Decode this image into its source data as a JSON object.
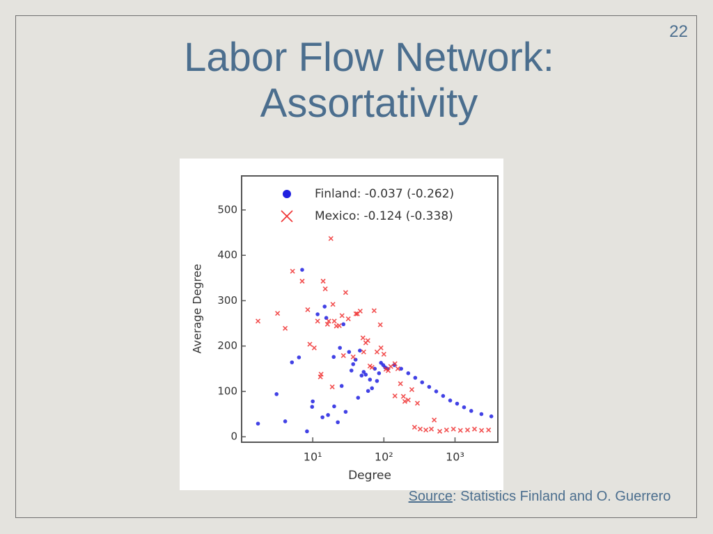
{
  "slide": {
    "page_number": "22",
    "title": [
      "Labor Flow Network:",
      "Assortativity"
    ],
    "source": {
      "label": "Source",
      "text": ": Statistics Finland and O. Guerrero"
    }
  },
  "chart_data": {
    "type": "scatter",
    "x_label": "Degree",
    "y_label": "Average Degree",
    "xscale": "log",
    "xlim": [
      1,
      4000
    ],
    "ylim": [
      -12,
      575
    ],
    "xticks": [
      {
        "value": 10,
        "label": "10¹"
      },
      {
        "value": 100,
        "label": "10²"
      },
      {
        "value": 1000,
        "label": "10³"
      }
    ],
    "yticks": [
      0,
      100,
      200,
      300,
      400,
      500
    ],
    "grid": false,
    "legend": "upper-left",
    "series": [
      {
        "name": "Finland: -0.037 (-0.262)",
        "color": "#2020e0",
        "marker": "circle",
        "x": [
          1.7,
          3.1,
          4.1,
          5.1,
          6.4,
          7.1,
          8.3,
          9.8,
          10,
          11.7,
          13.7,
          14.7,
          15.5,
          16.4,
          19.7,
          20,
          22.5,
          24.1,
          25.5,
          27,
          29,
          32.4,
          35,
          37,
          40,
          43.4,
          46,
          48.6,
          52,
          55.6,
          60,
          63.7,
          68,
          74.5,
          80,
          85.4,
          91,
          97.8,
          104,
          112,
          140,
          175,
          220,
          276,
          345,
          433,
          544,
          680,
          855,
          1070,
          1340,
          1690,
          2350,
          3240
        ],
        "y": [
          29,
          94,
          34,
          164,
          175,
          368,
          12,
          66,
          78,
          270,
          43,
          287,
          262,
          48,
          176,
          67,
          32,
          196,
          112,
          248,
          55,
          187,
          146,
          160,
          170,
          86,
          190,
          135,
          143,
          137,
          101,
          126,
          107,
          150,
          123,
          140,
          163,
          158,
          153,
          150,
          158,
          150,
          140,
          130,
          120,
          110,
          100,
          90,
          80,
          73,
          65,
          57,
          50,
          45
        ]
      },
      {
        "name": "Mexico: -0.124 (-0.338)",
        "color": "#f03030",
        "marker": "x",
        "x": [
          1.7,
          3.2,
          4.1,
          5.2,
          7.1,
          8.5,
          9.1,
          10.5,
          11.7,
          12.8,
          13.1,
          14,
          15,
          16.1,
          16.8,
          18,
          18.8,
          19.2,
          20.1,
          21.5,
          23.6,
          25.8,
          27,
          29,
          31.6,
          37,
          40.5,
          42.4,
          46.5,
          50.8,
          52,
          55.6,
          59.5,
          63.7,
          68,
          73,
          80,
          89,
          91,
          100,
          107,
          115,
          125,
          143,
          143,
          157,
          171,
          188,
          197,
          220,
          247,
          270,
          296,
          324,
          389,
          465,
          510,
          610,
          760,
          950,
          1190,
          1500,
          1880,
          2360,
          2960
        ],
        "y": [
          255,
          272,
          239,
          365,
          343,
          280,
          204,
          196,
          255,
          132,
          138,
          343,
          326,
          248,
          255,
          437,
          110,
          292,
          255,
          244,
          245,
          267,
          179,
          318,
          260,
          176,
          271,
          271,
          277,
          218,
          187,
          207,
          212,
          156,
          153,
          278,
          187,
          247,
          196,
          182,
          149,
          146,
          155,
          161,
          90,
          150,
          117,
          89,
          78,
          81,
          104,
          21,
          74,
          17,
          15,
          17,
          37,
          12,
          15,
          17,
          14,
          15,
          17,
          14,
          15
        ]
      }
    ]
  }
}
